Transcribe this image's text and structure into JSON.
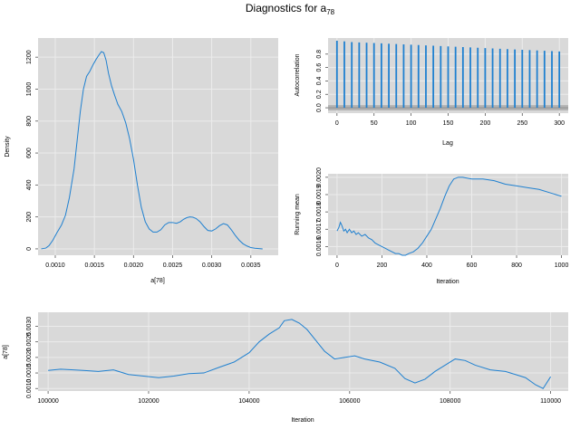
{
  "page": {
    "title_main": "Diagnostics for a",
    "title_sub": "78"
  },
  "colors": {
    "panel_bg": "#d9d9d9",
    "grid": "#ececec",
    "line": "#1f80d0",
    "acf_band": "#b3b3b3"
  },
  "chart_data": [
    {
      "id": "density",
      "type": "line",
      "title": "",
      "xlabel": "a[78]",
      "ylabel": "Density",
      "xlim": [
        0.00078,
        0.00385
      ],
      "ylim": [
        -40,
        1320
      ],
      "xticks": [
        0.001,
        0.0015,
        0.002,
        0.0025,
        0.003,
        0.0035
      ],
      "xtick_labels": [
        "0.0010",
        "0.0015",
        "0.0020",
        "0.0025",
        "0.0030",
        "0.0035"
      ],
      "yticks": [
        0,
        200,
        400,
        600,
        800,
        1000,
        1200
      ],
      "ytick_labels": [
        "0",
        "200",
        "400",
        "600",
        "800",
        "1000",
        "1200"
      ],
      "grid": true,
      "series": [
        {
          "x": [
            0.00082,
            0.00088,
            0.00092,
            0.00097,
            0.00102,
            0.00108,
            0.00113,
            0.00118,
            0.00124,
            0.00128,
            0.00132,
            0.00136,
            0.0014,
            0.00144,
            0.00148,
            0.00152,
            0.00156,
            0.00159,
            0.00162,
            0.00165,
            0.00168,
            0.00172,
            0.00176,
            0.0018,
            0.00185,
            0.0019,
            0.00195,
            0.002,
            0.00205,
            0.0021,
            0.00215,
            0.0022,
            0.00225,
            0.0023,
            0.00235,
            0.0024,
            0.00245,
            0.0025,
            0.00255,
            0.0026,
            0.00264,
            0.00268,
            0.00272,
            0.00276,
            0.0028,
            0.00285,
            0.0029,
            0.00295,
            0.003,
            0.00305,
            0.0031,
            0.00315,
            0.0032,
            0.00325,
            0.0033,
            0.00335,
            0.0034,
            0.00345,
            0.0035,
            0.00355,
            0.0036,
            0.00365
          ],
          "y": [
            0,
            5,
            20,
            55,
            100,
            150,
            210,
            320,
            500,
            680,
            860,
            1000,
            1080,
            1110,
            1150,
            1185,
            1215,
            1235,
            1228,
            1180,
            1100,
            1020,
            960,
            905,
            860,
            790,
            690,
            560,
            400,
            260,
            170,
            125,
            105,
            105,
            120,
            150,
            165,
            165,
            160,
            170,
            185,
            195,
            200,
            198,
            190,
            170,
            140,
            115,
            112,
            125,
            145,
            158,
            150,
            120,
            85,
            55,
            32,
            18,
            8,
            4,
            2,
            0
          ]
        }
      ]
    },
    {
      "id": "autocorrelation",
      "type": "bar",
      "title": "",
      "xlabel": "Lag",
      "ylabel": "Autocorrelation",
      "xlim": [
        -12,
        312
      ],
      "ylim": [
        -0.08,
        1.04
      ],
      "xticks": [
        0,
        50,
        100,
        150,
        200,
        250,
        300
      ],
      "xtick_labels": [
        "0",
        "50",
        "100",
        "150",
        "200",
        "250",
        "300"
      ],
      "yticks": [
        0,
        0.2,
        0.4,
        0.6,
        0.8
      ],
      "ytick_labels": [
        "0.0",
        "0.2",
        "0.4",
        "0.6",
        "0.8"
      ],
      "band": [
        -0.04,
        0.04
      ],
      "grid": true,
      "lags": [
        0,
        10,
        20,
        30,
        40,
        50,
        60,
        70,
        80,
        90,
        100,
        110,
        120,
        130,
        140,
        150,
        160,
        170,
        180,
        190,
        200,
        210,
        220,
        230,
        240,
        250,
        260,
        270,
        280,
        290,
        300
      ],
      "values": [
        1.0,
        0.99,
        0.98,
        0.975,
        0.97,
        0.965,
        0.96,
        0.955,
        0.95,
        0.945,
        0.94,
        0.935,
        0.93,
        0.925,
        0.92,
        0.915,
        0.91,
        0.905,
        0.9,
        0.895,
        0.89,
        0.885,
        0.88,
        0.875,
        0.87,
        0.865,
        0.86,
        0.855,
        0.85,
        0.845,
        0.84
      ]
    },
    {
      "id": "running-mean",
      "type": "line",
      "title": "",
      "xlabel": "Iteration",
      "ylabel": "Running mean",
      "xlim": [
        -40,
        1030
      ],
      "ylim": [
        0.00155,
        0.00202
      ],
      "xticks": [
        0,
        200,
        400,
        600,
        800,
        1000
      ],
      "xtick_labels": [
        "0",
        "200",
        "400",
        "600",
        "800",
        "1000"
      ],
      "yticks": [
        0.0016,
        0.0017,
        0.0018,
        0.0019,
        0.002
      ],
      "ytick_labels": [
        "0.0016",
        "0.0017",
        "0.0018",
        "0.0019",
        "0.0020"
      ],
      "grid": true,
      "series": [
        {
          "x": [
            0,
            8,
            15,
            22,
            30,
            38,
            45,
            55,
            65,
            75,
            85,
            95,
            110,
            125,
            140,
            155,
            170,
            185,
            200,
            215,
            230,
            245,
            260,
            275,
            290,
            305,
            320,
            340,
            360,
            380,
            400,
            420,
            440,
            460,
            480,
            500,
            520,
            540,
            560,
            600,
            650,
            700,
            750,
            800,
            850,
            900,
            950,
            1000
          ],
          "y": [
            0.00169,
            0.00171,
            0.00174,
            0.00172,
            0.00169,
            0.0017,
            0.00168,
            0.0017,
            0.00168,
            0.00169,
            0.00167,
            0.00168,
            0.00166,
            0.00167,
            0.00165,
            0.00164,
            0.00162,
            0.00161,
            0.0016,
            0.00159,
            0.00158,
            0.00157,
            0.00156,
            0.00156,
            0.00155,
            0.00155,
            0.00156,
            0.00157,
            0.00159,
            0.00162,
            0.00166,
            0.0017,
            0.00176,
            0.00182,
            0.00189,
            0.00195,
            0.00199,
            0.002,
            0.002,
            0.00199,
            0.00199,
            0.00198,
            0.00196,
            0.00195,
            0.00194,
            0.00193,
            0.00191,
            0.00189
          ]
        }
      ]
    },
    {
      "id": "trace",
      "type": "line",
      "title": "",
      "xlabel": "Iteration",
      "ylabel": "a[78]",
      "xlim": [
        99800,
        110350
      ],
      "ylim": [
        0.00092,
        0.00345
      ],
      "xticks": [
        100000,
        102000,
        104000,
        106000,
        108000,
        110000
      ],
      "xtick_labels": [
        "100000",
        "102000",
        "104000",
        "106000",
        "108000",
        "110000"
      ],
      "yticks": [
        0.001,
        0.0015,
        0.002,
        0.0025,
        0.003
      ],
      "ytick_labels": [
        "0.0010",
        "0.0015",
        "0.0020",
        "0.0025",
        "0.0030"
      ],
      "grid": true,
      "series": [
        {
          "x": [
            100000,
            100250,
            100500,
            100700,
            101000,
            101300,
            101600,
            101900,
            102200,
            102500,
            102800,
            103100,
            103400,
            103700,
            104000,
            104200,
            104400,
            104600,
            104700,
            104850,
            105000,
            105150,
            105300,
            105500,
            105700,
            105900,
            106100,
            106300,
            106600,
            106900,
            107100,
            107300,
            107500,
            107700,
            107900,
            108100,
            108300,
            108500,
            108800,
            109100,
            109300,
            109500,
            109700,
            109850,
            110000
          ],
          "y": [
            0.00158,
            0.00162,
            0.0016,
            0.00158,
            0.00155,
            0.0016,
            0.00145,
            0.0014,
            0.00135,
            0.0014,
            0.00148,
            0.0015,
            0.00168,
            0.00185,
            0.00215,
            0.0025,
            0.00275,
            0.00295,
            0.00318,
            0.00322,
            0.0031,
            0.0029,
            0.0026,
            0.0022,
            0.00195,
            0.002,
            0.00205,
            0.00195,
            0.00185,
            0.00165,
            0.00132,
            0.00118,
            0.0013,
            0.00155,
            0.00175,
            0.00195,
            0.0019,
            0.00175,
            0.0016,
            0.00155,
            0.00145,
            0.00135,
            0.00112,
            0.001,
            0.00138
          ]
        }
      ]
    }
  ]
}
